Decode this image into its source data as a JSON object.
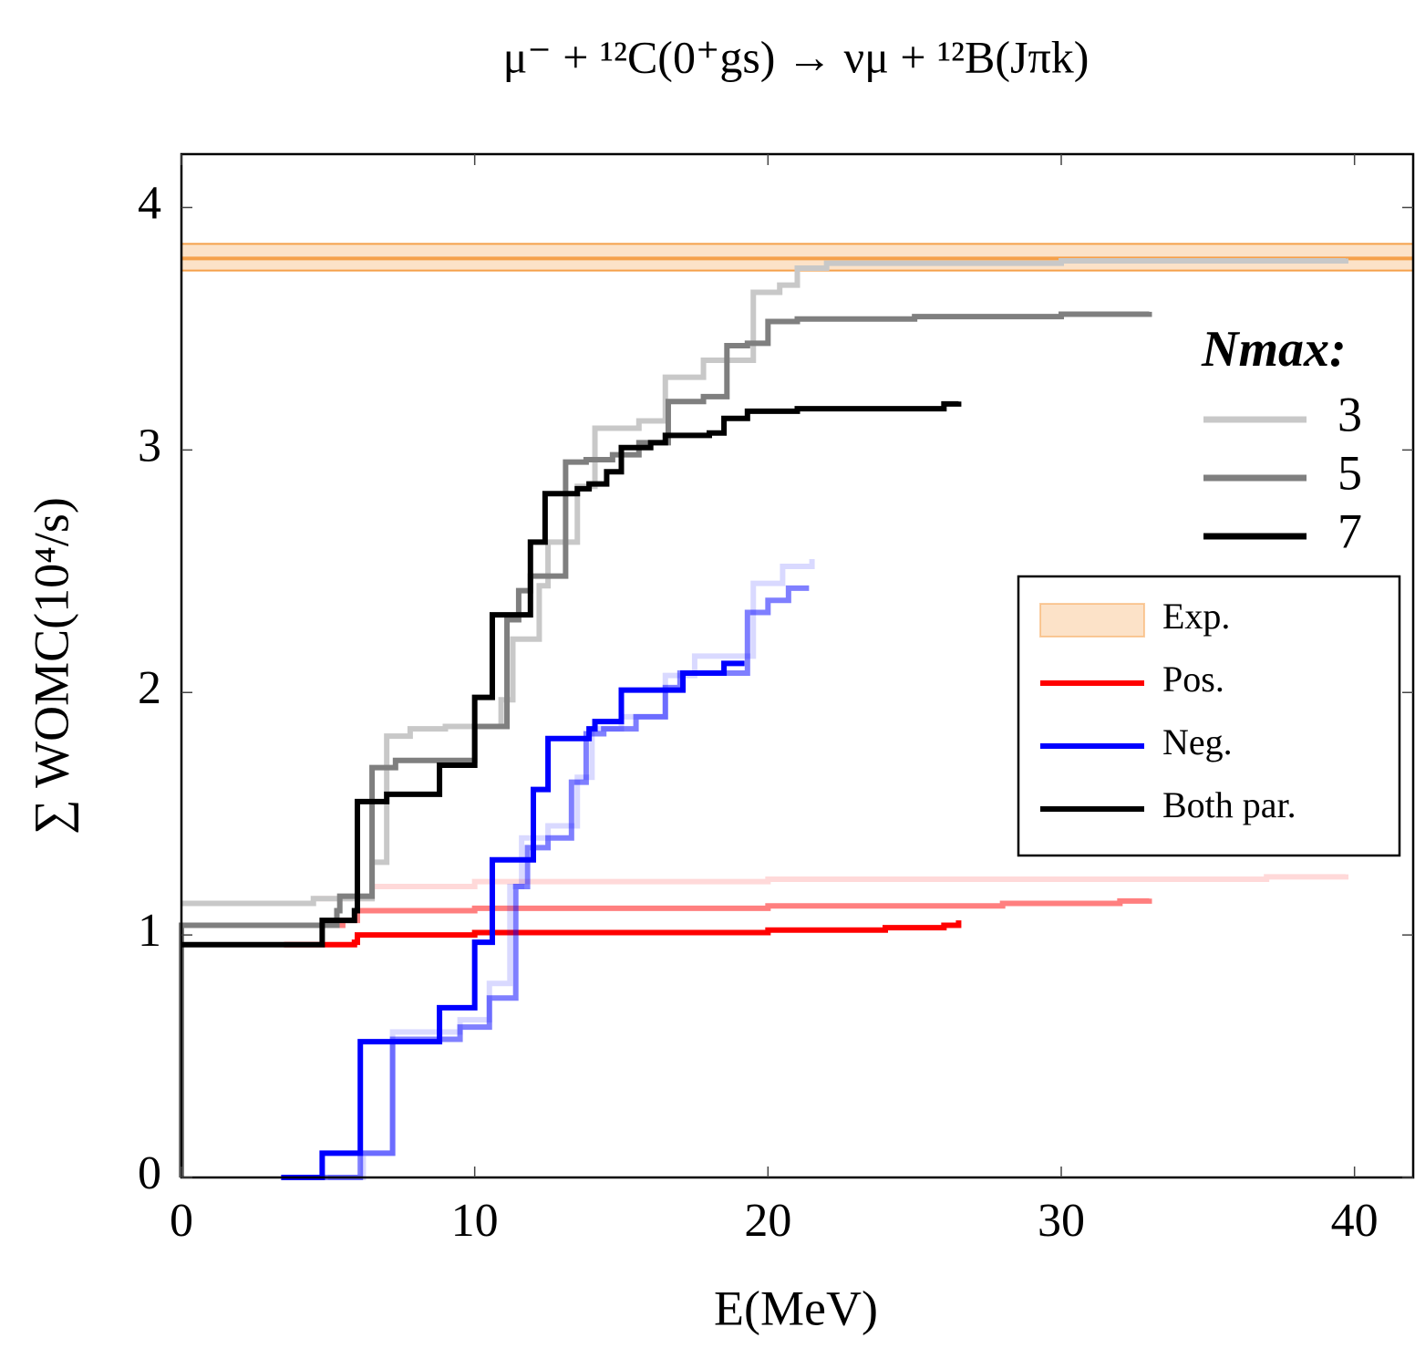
{
  "chart_data": {
    "type": "step",
    "title": "μ⁻ + ¹²C(0⁺gs) → νμ + ¹²B(Jπk)",
    "x_label": "E(MeV)",
    "y_label": "∑ WOMC(10⁴/s)",
    "xlim": [
      0,
      42
    ],
    "ylim": [
      0,
      4.22
    ],
    "xticks": [
      0,
      10,
      20,
      30,
      40
    ],
    "yticks": [
      0,
      1,
      2,
      3,
      4
    ],
    "exp": {
      "value": 3.79,
      "low": 3.74,
      "high": 3.85,
      "color": "#f5a04a"
    },
    "legend_nmax": {
      "title": "Nmax:",
      "entries": [
        {
          "label": "3",
          "color": "#c8c8c8"
        },
        {
          "label": "5",
          "color": "#7f7f7f"
        },
        {
          "label": "7",
          "color": "#000000"
        }
      ]
    },
    "legend_parity": [
      {
        "label": "Exp.",
        "color": "#f5a04a"
      },
      {
        "label": "Pos.",
        "color": "#ff0000"
      },
      {
        "label": "Neg.",
        "color": "#0000ff"
      },
      {
        "label": "Both par.",
        "color": "#000000"
      }
    ],
    "series": [
      {
        "color": "#ff0000",
        "opacity": 0.15,
        "x": [
          4.5,
          6.5,
          10,
          20,
          30,
          37,
          39.7
        ],
        "values": [
          1.15,
          1.2,
          1.22,
          1.23,
          1.23,
          1.24,
          1.25
        ]
      },
      {
        "color": "#ff0000",
        "opacity": 0.5,
        "x": [
          3.5,
          5.5,
          6.0,
          10,
          20,
          28,
          32,
          33
        ],
        "values": [
          1.04,
          1.06,
          1.1,
          1.11,
          1.12,
          1.13,
          1.14,
          1.15
        ]
      },
      {
        "color": "#ff0000",
        "opacity": 1,
        "x": [
          3.5,
          5.9,
          6.0,
          10,
          15,
          20,
          24,
          26,
          26.5
        ],
        "values": [
          0.96,
          0.97,
          1.0,
          1.01,
          1.01,
          1.02,
          1.03,
          1.04,
          1.06
        ]
      },
      {
        "color": "#0000ff",
        "opacity": 0.15,
        "x": [
          5,
          6.2,
          7.2,
          9.5,
          10.5,
          11.2,
          11.6,
          12.5,
          13.5,
          14.0,
          15,
          16.5,
          17.5,
          19.5,
          20.5,
          21.5
        ],
        "values": [
          0,
          0.1,
          0.6,
          0.65,
          0.8,
          1.2,
          1.4,
          1.45,
          1.65,
          1.85,
          1.9,
          2.07,
          2.15,
          2.45,
          2.52,
          2.55
        ]
      },
      {
        "color": "#0000ff",
        "opacity": 0.5,
        "x": [
          4.8,
          6.1,
          7.2,
          9.5,
          10.5,
          11.4,
          11.8,
          12.5,
          13.3,
          13.8,
          14.4,
          15.5,
          16.5,
          17.0,
          19.3,
          20.0,
          20.7,
          21.4
        ],
        "values": [
          0,
          0.1,
          0.57,
          0.62,
          0.74,
          1.2,
          1.36,
          1.4,
          1.63,
          1.83,
          1.85,
          1.9,
          2.02,
          2.08,
          2.33,
          2.38,
          2.43,
          2.43
        ]
      },
      {
        "color": "#0000ff",
        "opacity": 1,
        "x": [
          3.4,
          4.8,
          6.1,
          8.8,
          10.0,
          10.6,
          12.0,
          12.5,
          13.9,
          14.1,
          15.0,
          17.1,
          18.5,
          19.2
        ],
        "values": [
          0,
          0.1,
          0.56,
          0.7,
          0.97,
          1.31,
          1.6,
          1.81,
          1.85,
          1.88,
          2.01,
          2.08,
          2.12,
          2.12
        ]
      },
      {
        "color": "#c8c8c8",
        "opacity": 1,
        "x": [
          0,
          4.5,
          6.5,
          7.0,
          7.8,
          9.0,
          10.9,
          11.3,
          12.2,
          12.5,
          13.5,
          14.1,
          15.6,
          16.5,
          17.8,
          19.5,
          20.4,
          21.0,
          22,
          30,
          39.7
        ],
        "values": [
          1.13,
          1.15,
          1.3,
          1.82,
          1.85,
          1.86,
          1.97,
          2.22,
          2.44,
          2.62,
          2.85,
          3.09,
          3.12,
          3.3,
          3.37,
          3.65,
          3.68,
          3.75,
          3.77,
          3.78,
          3.79
        ]
      },
      {
        "color": "#7f7f7f",
        "opacity": 1,
        "x": [
          0,
          0,
          5.3,
          5.4,
          6.5,
          7.3,
          10.0,
          10.9,
          11.1,
          11.5,
          11.9,
          13.1,
          13.8,
          14.7,
          15.6,
          16.6,
          17.8,
          18.6,
          19.3,
          20.0,
          21,
          25,
          30,
          33
        ],
        "values": [
          0,
          1.04,
          1.1,
          1.16,
          1.69,
          1.72,
          1.86,
          1.86,
          2.3,
          2.42,
          2.48,
          2.95,
          2.96,
          2.98,
          3.03,
          3.2,
          3.22,
          3.43,
          3.44,
          3.53,
          3.54,
          3.55,
          3.56,
          3.57
        ]
      },
      {
        "color": "#000000",
        "opacity": 1,
        "x": [
          0,
          4.8,
          5.9,
          6.0,
          7.0,
          8.8,
          10.0,
          10.6,
          11.9,
          12.4,
          13.5,
          13.9,
          14.5,
          15.0,
          16,
          16.5,
          18,
          18.5,
          19.3,
          21,
          24,
          26,
          26.5
        ],
        "values": [
          0.96,
          1.06,
          1.1,
          1.55,
          1.58,
          1.7,
          1.98,
          2.32,
          2.62,
          2.82,
          2.84,
          2.86,
          2.91,
          3.01,
          3.03,
          3.06,
          3.07,
          3.13,
          3.16,
          3.17,
          3.17,
          3.19,
          3.2
        ]
      }
    ]
  }
}
